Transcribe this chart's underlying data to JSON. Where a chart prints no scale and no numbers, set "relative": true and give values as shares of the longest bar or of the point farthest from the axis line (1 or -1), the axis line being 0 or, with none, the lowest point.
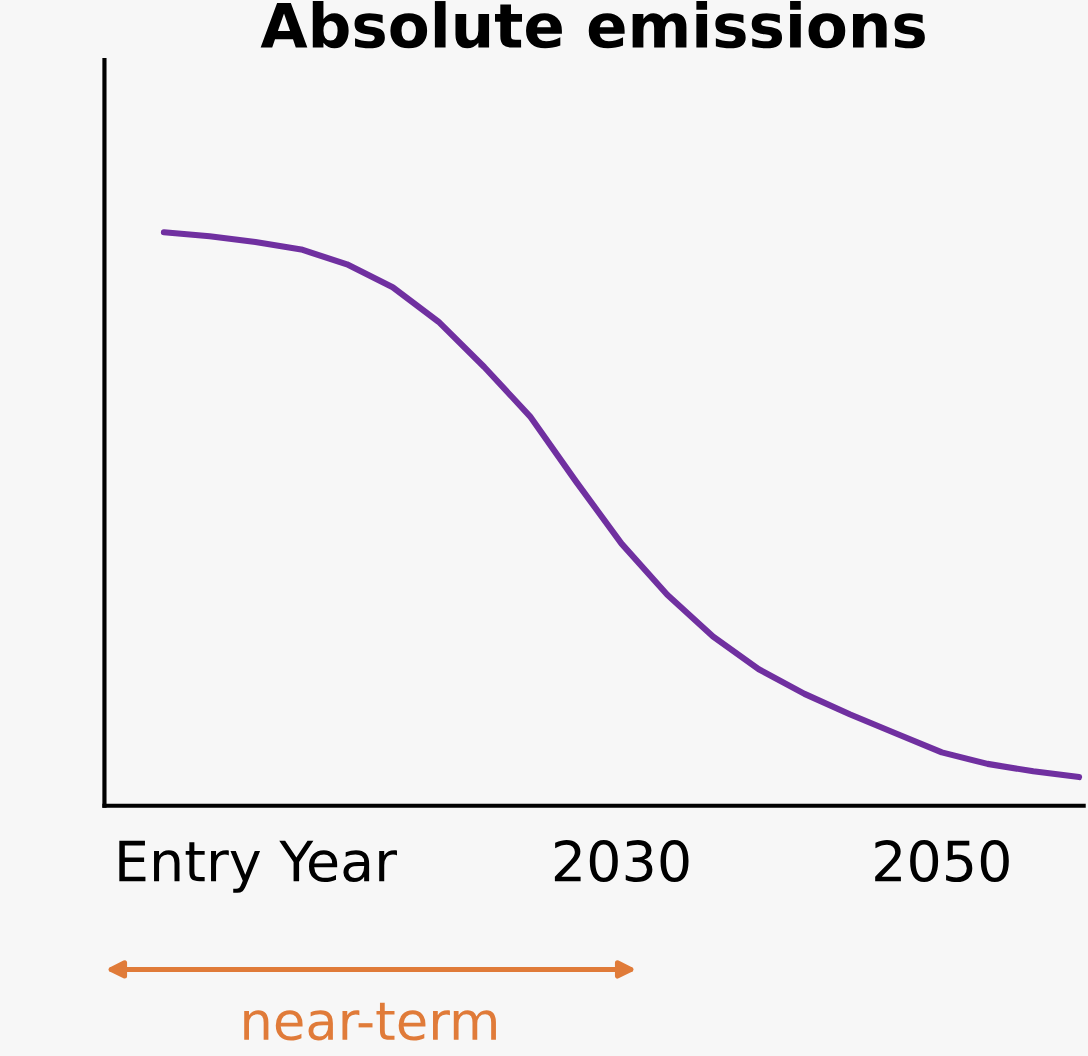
{
  "chart_data": {
    "type": "line",
    "title": "Absolute emissions",
    "relative": true,
    "categories": [
      null,
      null,
      "Entry Year",
      null,
      null,
      null,
      null,
      null,
      null,
      null,
      "2030",
      null,
      null,
      null,
      null,
      null,
      null,
      "2050",
      null,
      null,
      null
    ],
    "series": [
      {
        "color": "#7030a0",
        "values": [
          1.0,
          0.993,
          0.983,
          0.97,
          0.944,
          0.904,
          0.844,
          0.765,
          0.679,
          0.566,
          0.457,
          0.368,
          0.295,
          0.238,
          0.195,
          0.159,
          0.126,
          0.093,
          0.073,
          0.06,
          0.05
        ]
      }
    ],
    "annotations": [
      "near-term"
    ]
  }
}
